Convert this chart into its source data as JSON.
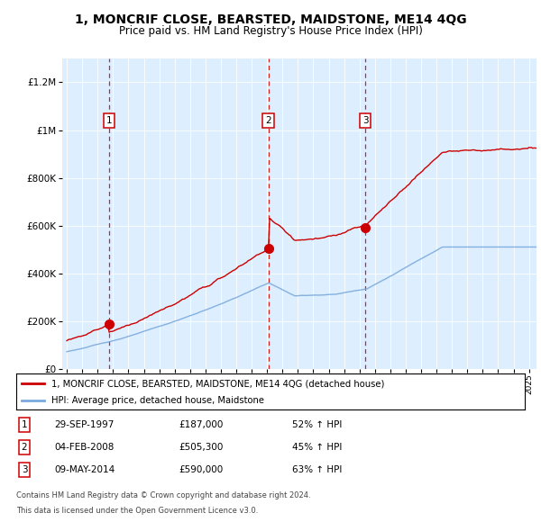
{
  "title": "1, MONCRIF CLOSE, BEARSTED, MAIDSTONE, ME14 4QG",
  "subtitle": "Price paid vs. HM Land Registry's House Price Index (HPI)",
  "sale_year_floats": [
    1997.747,
    2008.087,
    2014.37
  ],
  "sale_prices": [
    187000,
    505300,
    590000
  ],
  "sale_labels": [
    "1",
    "2",
    "3"
  ],
  "sale_info": [
    [
      "1",
      "29-SEP-1997",
      "£187,000",
      "52% ↑ HPI"
    ],
    [
      "2",
      "04-FEB-2008",
      "£505,300",
      "45% ↑ HPI"
    ],
    [
      "3",
      "09-MAY-2014",
      "£590,000",
      "63% ↑ HPI"
    ]
  ],
  "legend_line1": "1, MONCRIF CLOSE, BEARSTED, MAIDSTONE, ME14 4QG (detached house)",
  "legend_line2": "HPI: Average price, detached house, Maidstone",
  "footer": [
    "Contains HM Land Registry data © Crown copyright and database right 2024.",
    "This data is licensed under the Open Government Licence v3.0."
  ],
  "price_line_color": "#cc0000",
  "hpi_line_color": "#7aaadd",
  "vline_color": "#cc0000",
  "plot_bg_color": "#ddeeff",
  "ylim": [
    0,
    1300000
  ],
  "xlim_start": 1994.7,
  "xlim_end": 2025.5,
  "yticks": [
    0,
    200000,
    400000,
    600000,
    800000,
    1000000,
    1200000
  ],
  "ytick_labels": [
    "£0",
    "£200K",
    "£400K",
    "£600K",
    "£800K",
    "£1M",
    "£1.2M"
  ]
}
